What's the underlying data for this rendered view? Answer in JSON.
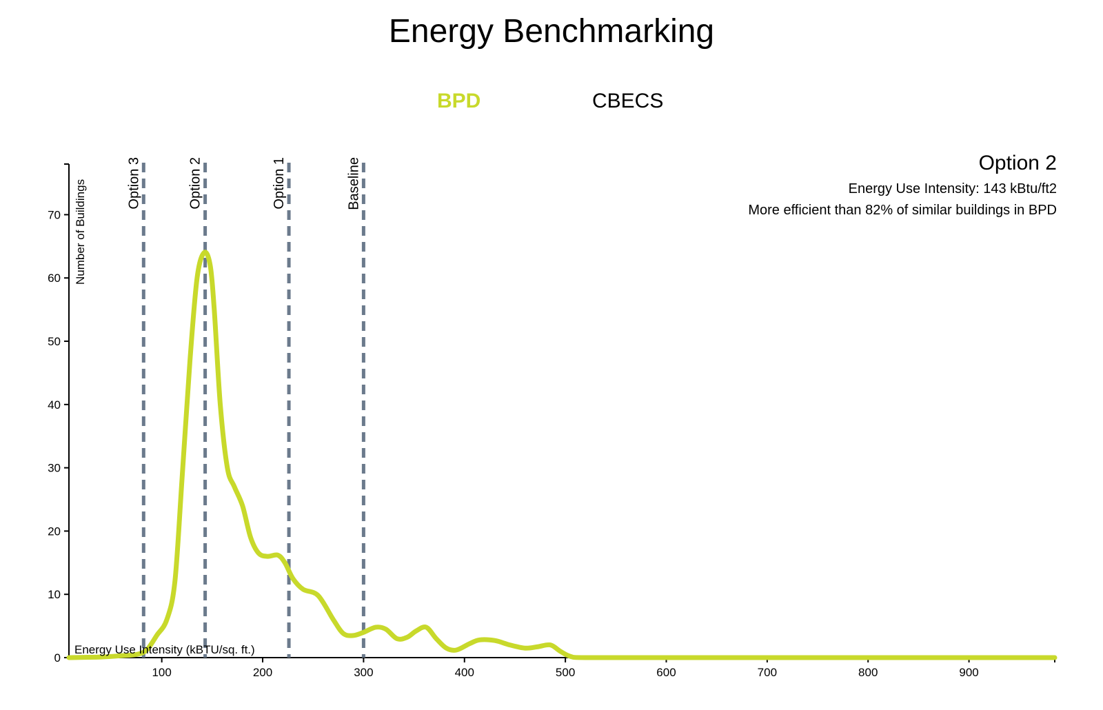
{
  "title": "Energy Benchmarking",
  "tabs": [
    {
      "label": "BPD",
      "active": true
    },
    {
      "label": "CBECS",
      "active": false
    }
  ],
  "info": {
    "title": "Option 2",
    "eui": "Energy Use Intensity: 143 kBtu/ft2",
    "efficiency": "More efficient than 82% of similar buildings in BPD"
  },
  "colors": {
    "curve": "#c8d92b",
    "marker": "#6b7a8c",
    "active_tab": "#c8d92b"
  },
  "chart_data": {
    "type": "line",
    "xlabel": "Energy Use Intensity (kBTU/sq. ft.)",
    "ylabel": "Number of Buildings",
    "xlim": [
      8,
      985
    ],
    "ylim": [
      0,
      78
    ],
    "xticks": [
      100,
      200,
      300,
      400,
      500,
      600,
      700,
      800,
      900
    ],
    "yticks": [
      0,
      10,
      20,
      30,
      40,
      50,
      60,
      70
    ],
    "series": [
      {
        "name": "BPD",
        "x": [
          8,
          40,
          60,
          75,
          85,
          95,
          105,
          113,
          120,
          128,
          135,
          142,
          148,
          152,
          158,
          165,
          172,
          180,
          188,
          196,
          205,
          215,
          222,
          230,
          240,
          255,
          270,
          280,
          290,
          300,
          312,
          322,
          333,
          343,
          352,
          362,
          372,
          382,
          392,
          405,
          415,
          430,
          445,
          460,
          472,
          485,
          495,
          505,
          520,
          600,
          700,
          800,
          900,
          985
        ],
        "y": [
          0,
          0.1,
          0.3,
          0.5,
          1.2,
          3.5,
          6,
          12,
          28,
          47,
          60,
          64,
          62,
          55,
          40,
          30,
          27,
          24,
          19,
          16.5,
          16,
          16.2,
          15,
          12.5,
          10.8,
          9.8,
          6,
          3.8,
          3.5,
          4,
          4.8,
          4.5,
          3,
          3.2,
          4.2,
          4.8,
          3,
          1.5,
          1.2,
          2.2,
          2.8,
          2.7,
          2,
          1.5,
          1.7,
          2,
          1,
          0.2,
          0,
          0,
          0,
          0,
          0,
          0
        ]
      }
    ],
    "markers": [
      {
        "label": "Option 3",
        "x": 82
      },
      {
        "label": "Option 2",
        "x": 143
      },
      {
        "label": "Option 1",
        "x": 226
      },
      {
        "label": "Baseline",
        "x": 300
      }
    ]
  }
}
